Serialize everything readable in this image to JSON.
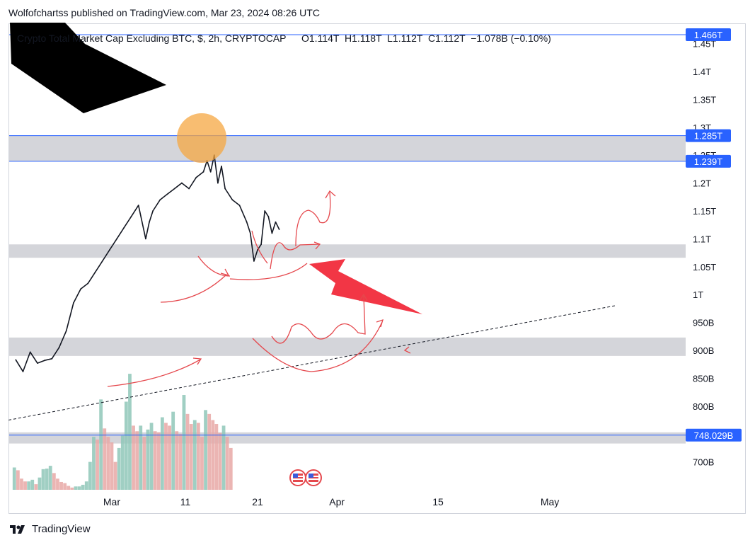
{
  "header": {
    "published_by": "Wolfofchartss published on TradingView.com, Mar 23, 2024 08:26 UTC"
  },
  "chart_data": {
    "type": "line",
    "title": "Crypto Total Market Cap Excluding BTC, $, 2h, CRYPTOCAP",
    "ohlc_text": "O1.114T  H1.118T  L1.112T  C1.112T  −1.078B (−0.10%)",
    "price_axis": {
      "scale_min": 0.65,
      "scale_max": 1.485,
      "ticks": [
        {
          "value": 1.45,
          "label": "1.45T"
        },
        {
          "value": 1.4,
          "label": "1.4T"
        },
        {
          "value": 1.35,
          "label": "1.35T"
        },
        {
          "value": 1.3,
          "label": "1.3T"
        },
        {
          "value": 1.25,
          "label": "1.25T"
        },
        {
          "value": 1.2,
          "label": "1.2T"
        },
        {
          "value": 1.15,
          "label": "1.15T"
        },
        {
          "value": 1.1,
          "label": "1.1T"
        },
        {
          "value": 1.05,
          "label": "1.05T"
        },
        {
          "value": 1.0,
          "label": "1T"
        },
        {
          "value": 0.95,
          "label": "950B"
        },
        {
          "value": 0.9,
          "label": "900B"
        },
        {
          "value": 0.85,
          "label": "850B"
        },
        {
          "value": 0.8,
          "label": "800B"
        },
        {
          "value": 0.75,
          "label": "750B"
        },
        {
          "value": 0.7,
          "label": "700B"
        }
      ]
    },
    "time_axis": {
      "ticks": [
        {
          "day": -0.2,
          "label": "Mar"
        },
        {
          "day": 10,
          "label": "11"
        },
        {
          "day": 20,
          "label": "21"
        },
        {
          "day": 31,
          "label": "Apr"
        },
        {
          "day": 45,
          "label": "15"
        },
        {
          "day": 60.5,
          "label": "May"
        }
      ]
    },
    "price_badges": [
      {
        "value": 1.466,
        "label": "1.466T"
      },
      {
        "value": 1.285,
        "label": "1.285T"
      },
      {
        "value": 1.239,
        "label": "1.239T"
      },
      {
        "value": 0.748029,
        "label": "748.029B"
      }
    ],
    "zones": [
      {
        "top": 1.285,
        "bottom": 1.239
      },
      {
        "top": 1.09,
        "bottom": 1.066
      },
      {
        "top": 0.923,
        "bottom": 0.89
      },
      {
        "top": 0.753,
        "bottom": 0.733
      }
    ],
    "series": [
      {
        "x": [
          -13.5,
          -12.5,
          -11.5,
          -10.5,
          -9.5,
          -8.5,
          -7.5,
          -6.5,
          -5.5,
          -4.5,
          -3.5,
          -2.5,
          -1.5,
          -0.5,
          0.5,
          1.5,
          2.5,
          3.5,
          4.5,
          5,
          5.5,
          6.5,
          7.5,
          8.5,
          9.5,
          10.5,
          11.5,
          12.5,
          13,
          13.5,
          14,
          14.5,
          15,
          15.5,
          16.5,
          17.5,
          18.5,
          19,
          19.5,
          20,
          20.5,
          21,
          21.5,
          22,
          22.5,
          23
        ],
        "values": [
          0.883,
          0.862,
          0.897,
          0.877,
          0.882,
          0.885,
          0.905,
          0.935,
          0.985,
          1.01,
          1.02,
          1.04,
          1.06,
          1.08,
          1.1,
          1.12,
          1.14,
          1.16,
          1.1,
          1.13,
          1.15,
          1.17,
          1.18,
          1.19,
          1.2,
          1.19,
          1.21,
          1.22,
          1.24,
          1.22,
          1.25,
          1.2,
          1.23,
          1.19,
          1.17,
          1.16,
          1.13,
          1.11,
          1.06,
          1.08,
          1.09,
          1.15,
          1.14,
          1.11,
          1.13,
          1.117
        ]
      }
    ],
    "volume": [
      {
        "day": -13.7,
        "value": 0.69
      },
      {
        "day": -13.2,
        "value": 0.685
      },
      {
        "day": -12.7,
        "value": 0.67
      },
      {
        "day": -12.2,
        "value": 0.665
      },
      {
        "day": -11.7,
        "value": 0.665
      },
      {
        "day": -11.2,
        "value": 0.668
      },
      {
        "day": -10.7,
        "value": 0.66
      },
      {
        "day": -10.2,
        "value": 0.672
      },
      {
        "day": -9.7,
        "value": 0.687
      },
      {
        "day": -9.2,
        "value": 0.688
      },
      {
        "day": -8.7,
        "value": 0.693
      },
      {
        "day": -8.2,
        "value": 0.68
      },
      {
        "day": -7.7,
        "value": 0.67
      },
      {
        "day": -7.2,
        "value": 0.664
      },
      {
        "day": -6.7,
        "value": 0.662
      },
      {
        "day": -6.2,
        "value": 0.657
      },
      {
        "day": -5.7,
        "value": 0.654
      },
      {
        "day": -5.2,
        "value": 0.656
      },
      {
        "day": -4.7,
        "value": 0.656
      },
      {
        "day": -4.2,
        "value": 0.659
      },
      {
        "day": -3.7,
        "value": 0.665
      },
      {
        "day": -3.2,
        "value": 0.7
      },
      {
        "day": -2.7,
        "value": 0.745
      },
      {
        "day": -2.2,
        "value": 0.74
      },
      {
        "day": -1.7,
        "value": 0.812
      },
      {
        "day": -1.2,
        "value": 0.76
      },
      {
        "day": -0.7,
        "value": 0.745
      },
      {
        "day": -0.2,
        "value": 0.735
      },
      {
        "day": 0.3,
        "value": 0.7
      },
      {
        "day": 0.8,
        "value": 0.725
      },
      {
        "day": 1.3,
        "value": 0.747
      },
      {
        "day": 1.8,
        "value": 0.808
      },
      {
        "day": 2.3,
        "value": 0.858
      },
      {
        "day": 2.8,
        "value": 0.765
      },
      {
        "day": 3.3,
        "value": 0.755
      },
      {
        "day": 3.8,
        "value": 0.765
      },
      {
        "day": 4.3,
        "value": 0.745
      },
      {
        "day": 4.8,
        "value": 0.758
      },
      {
        "day": 5.3,
        "value": 0.77
      },
      {
        "day": 5.8,
        "value": 0.755
      },
      {
        "day": 6.3,
        "value": 0.753
      },
      {
        "day": 6.8,
        "value": 0.78
      },
      {
        "day": 7.3,
        "value": 0.77
      },
      {
        "day": 7.8,
        "value": 0.765
      },
      {
        "day": 8.3,
        "value": 0.79
      },
      {
        "day": 8.8,
        "value": 0.755
      },
      {
        "day": 9.3,
        "value": 0.75
      },
      {
        "day": 9.8,
        "value": 0.82
      },
      {
        "day": 10.3,
        "value": 0.786
      },
      {
        "day": 10.8,
        "value": 0.768
      },
      {
        "day": 11.3,
        "value": 0.775
      },
      {
        "day": 11.8,
        "value": 0.77
      },
      {
        "day": 12.3,
        "value": 0.745
      },
      {
        "day": 12.8,
        "value": 0.793
      },
      {
        "day": 13.3,
        "value": 0.786
      },
      {
        "day": 13.8,
        "value": 0.775
      },
      {
        "day": 14.3,
        "value": 0.768
      },
      {
        "day": 14.8,
        "value": 0.752
      },
      {
        "day": 15.3,
        "value": 0.765
      },
      {
        "day": 15.8,
        "value": 0.745
      },
      {
        "day": 16.3,
        "value": 0.725
      }
    ],
    "trendline": {
      "x1": -14.5,
      "y1": 0.775,
      "x2": 69.5,
      "y2": 0.98,
      "style": "dashed"
    },
    "legend": "none",
    "grid": false
  },
  "annotations": {
    "colors": {
      "arrow_big": "#000000",
      "arrow_red": "#f23645",
      "circle": "#f5a742",
      "pen": "#e5484d"
    }
  },
  "footer": {
    "brand": "TradingView"
  }
}
